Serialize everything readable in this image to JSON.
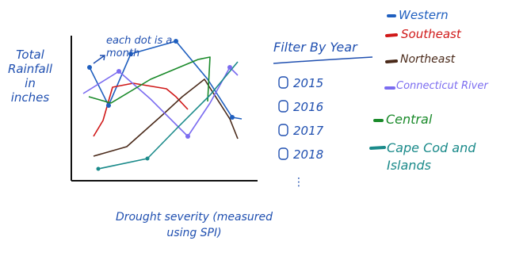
{
  "axes": {
    "y_label": "Total Rainfall in inches",
    "x_label": "Drought severity (measured using SPI)",
    "annotation": "each dot is a month"
  },
  "filter": {
    "title": "Filter By Year",
    "options": [
      "2015",
      "2016",
      "2017",
      "2018"
    ],
    "more": "⋮"
  },
  "legend": {
    "items": [
      "Western",
      "Southeast",
      "Northeast",
      "Connecticut River",
      "Central",
      "Cape Cod and Islands"
    ]
  }
}
